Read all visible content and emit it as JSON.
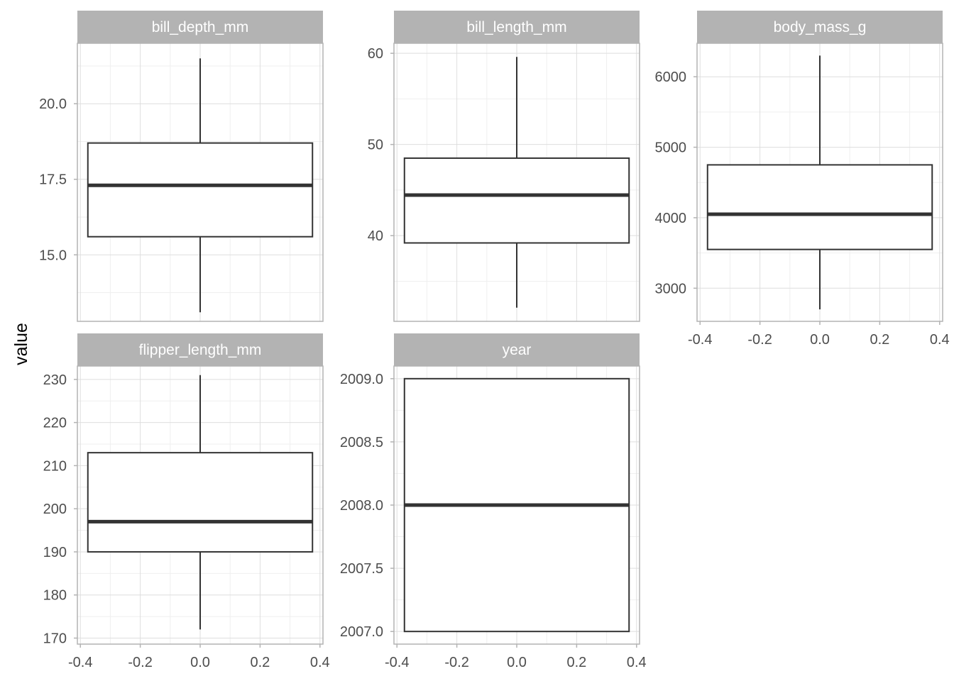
{
  "chart_data": {
    "type": "boxplot",
    "facet_layout": {
      "ncol": 3,
      "nrow": 2,
      "scales": "free_y"
    },
    "ylabel": "value",
    "xlabel": "",
    "grid": true,
    "style": {
      "strip_fill": "#b3b3b3",
      "strip_text_color": "#ffffff",
      "panel_border": "#b3b3b3",
      "grid_major": "#dedede",
      "grid_minor": "#efefef",
      "box_line": "#333333",
      "box_fill": "#ffffff",
      "tick_text_color": "#4d4d4d"
    },
    "x_ticks": [
      "-0.4",
      "-0.2",
      "0.0",
      "0.2",
      "0.4"
    ],
    "x_tick_values": [
      -0.4,
      -0.2,
      0.0,
      0.2,
      0.4
    ],
    "xlim": [
      -0.41,
      0.41
    ],
    "box_x_range": [
      -0.375,
      0.375
    ],
    "panels": [
      {
        "title": "bill_depth_mm",
        "ylim": [
          12.8,
          22.0
        ],
        "y_ticks": [
          "15.0",
          "17.5",
          "20.0"
        ],
        "y_tick_values": [
          15.0,
          17.5,
          20.0
        ],
        "y_minor": [
          13.75,
          16.25,
          18.75,
          21.25
        ],
        "show_x_axis": false,
        "box": {
          "min": 13.1,
          "q1": 15.6,
          "median": 17.3,
          "q3": 18.7,
          "max": 21.5
        }
      },
      {
        "title": "bill_length_mm",
        "ylim": [
          30.6,
          61.1
        ],
        "y_ticks": [
          "40",
          "50",
          "60"
        ],
        "y_tick_values": [
          40,
          50,
          60
        ],
        "y_minor": [
          35,
          45,
          55
        ],
        "show_x_axis": false,
        "box": {
          "min": 32.1,
          "q1": 39.2,
          "median": 44.45,
          "q3": 48.5,
          "max": 59.6
        }
      },
      {
        "title": "body_mass_g",
        "ylim": [
          2530,
          6475
        ],
        "y_ticks": [
          "3000",
          "4000",
          "5000",
          "6000"
        ],
        "y_tick_values": [
          3000,
          4000,
          5000,
          6000
        ],
        "y_minor": [
          3500,
          4500,
          5500
        ],
        "show_x_axis": true,
        "box": {
          "min": 2700,
          "q1": 3550,
          "median": 4050,
          "q3": 4750,
          "max": 6300
        }
      },
      {
        "title": "flipper_length_mm",
        "ylim": [
          168.6,
          233.1
        ],
        "y_ticks": [
          "170",
          "180",
          "190",
          "200",
          "210",
          "220",
          "230"
        ],
        "y_tick_values": [
          170,
          180,
          190,
          200,
          210,
          220,
          230
        ],
        "y_minor": [
          175,
          185,
          195,
          205,
          215,
          225
        ],
        "show_x_axis": true,
        "box": {
          "min": 172,
          "q1": 190,
          "median": 197,
          "q3": 213,
          "max": 231
        }
      },
      {
        "title": "year",
        "ylim": [
          2006.9,
          2009.1
        ],
        "y_ticks": [
          "2007.0",
          "2007.5",
          "2008.0",
          "2008.5",
          "2009.0"
        ],
        "y_tick_values": [
          2007.0,
          2007.5,
          2008.0,
          2008.5,
          2009.0
        ],
        "y_minor": [
          2007.25,
          2007.75,
          2008.25,
          2008.75
        ],
        "show_x_axis": true,
        "box": {
          "min": 2007,
          "q1": 2007,
          "median": 2008,
          "q3": 2009,
          "max": 2009
        }
      }
    ]
  }
}
